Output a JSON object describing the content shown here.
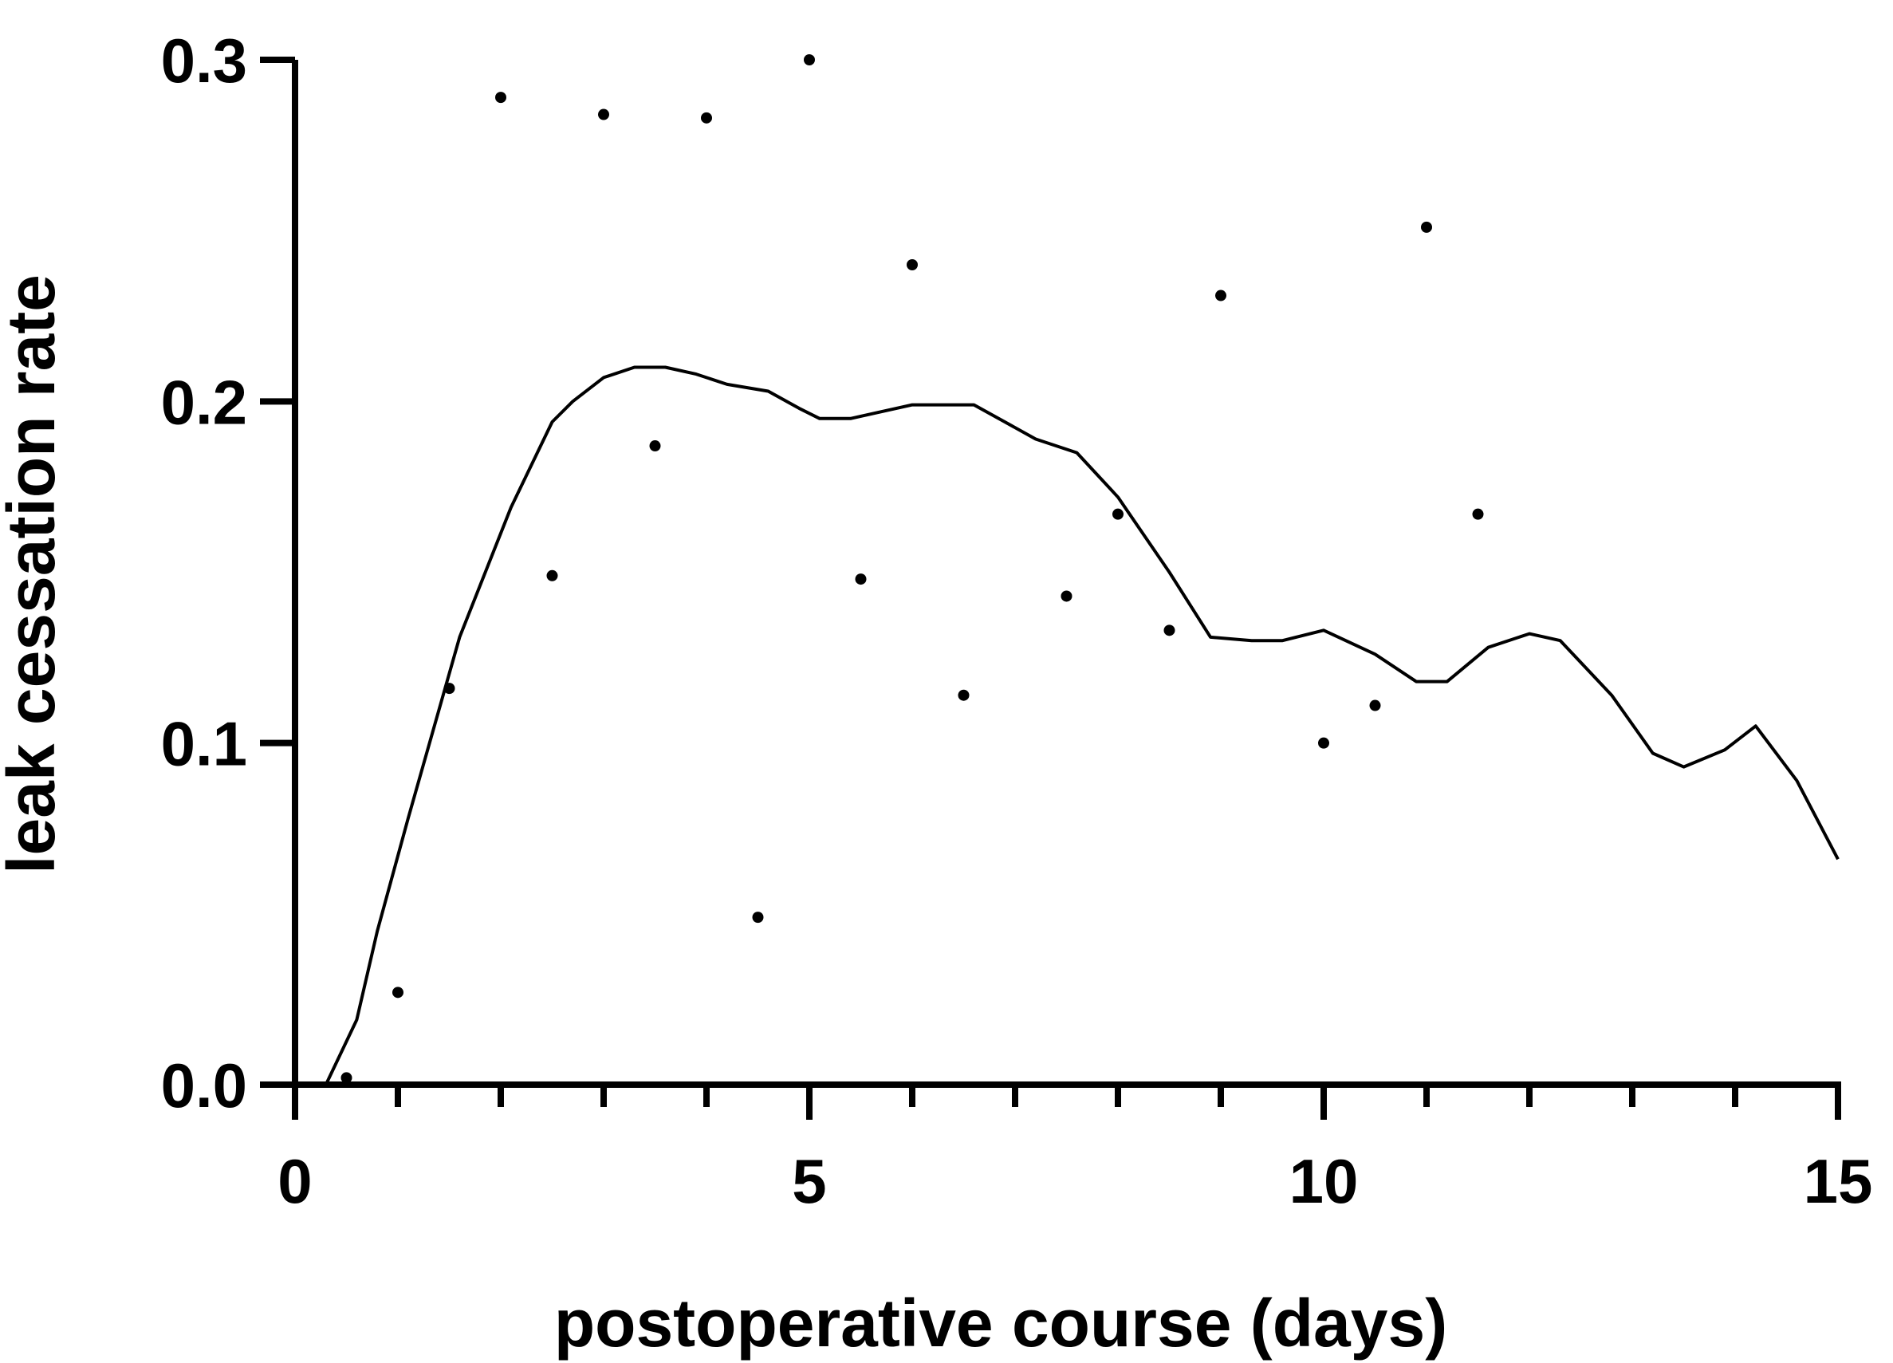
{
  "chart_data": {
    "type": "scatter",
    "title": "",
    "xlabel": "postoperative course (days)",
    "ylabel": "leak cessation rate",
    "xlim": [
      0,
      15
    ],
    "ylim": [
      0,
      0.3
    ],
    "x_ticks_major": [
      0,
      5,
      10,
      15
    ],
    "x_tick_labels": [
      "0",
      "5",
      "10",
      "15"
    ],
    "x_ticks_minor": [
      1,
      2,
      3,
      4,
      6,
      7,
      8,
      9,
      11,
      12,
      13,
      14
    ],
    "y_ticks": [
      0,
      0.1,
      0.2,
      0.3
    ],
    "y_tick_labels": [
      "0.0",
      "0.1",
      "0.2",
      "0.3"
    ],
    "grid": false,
    "series": [
      {
        "kind": "points",
        "color": "#000000",
        "points": [
          [
            0.5,
            0.002
          ],
          [
            1.0,
            0.027
          ],
          [
            1.5,
            0.116
          ],
          [
            2.0,
            0.289
          ],
          [
            2.5,
            0.149
          ],
          [
            3.0,
            0.284
          ],
          [
            3.5,
            0.187
          ],
          [
            4.0,
            0.283
          ],
          [
            4.5,
            0.049
          ],
          [
            5.0,
            0.3
          ],
          [
            5.5,
            0.148
          ],
          [
            6.0,
            0.24
          ],
          [
            6.5,
            0.114
          ],
          [
            7.5,
            0.143
          ],
          [
            8.0,
            0.167
          ],
          [
            8.5,
            0.133
          ],
          [
            9.0,
            0.231
          ],
          [
            10.0,
            0.1
          ],
          [
            10.5,
            0.111
          ],
          [
            11.0,
            0.251
          ],
          [
            11.5,
            0.167
          ]
        ]
      },
      {
        "kind": "smoothed-line",
        "color": "#000000",
        "points": [
          [
            0.3,
            0.0
          ],
          [
            0.6,
            0.019
          ],
          [
            0.8,
            0.045
          ],
          [
            1.1,
            0.078
          ],
          [
            1.6,
            0.131
          ],
          [
            2.1,
            0.169
          ],
          [
            2.5,
            0.194
          ],
          [
            2.7,
            0.2
          ],
          [
            3.0,
            0.207
          ],
          [
            3.3,
            0.21
          ],
          [
            3.6,
            0.21
          ],
          [
            3.9,
            0.208
          ],
          [
            4.2,
            0.205
          ],
          [
            4.6,
            0.203
          ],
          [
            4.9,
            0.198
          ],
          [
            5.1,
            0.195
          ],
          [
            5.4,
            0.195
          ],
          [
            5.7,
            0.197
          ],
          [
            6.0,
            0.199
          ],
          [
            6.3,
            0.199
          ],
          [
            6.6,
            0.199
          ],
          [
            6.9,
            0.194
          ],
          [
            7.2,
            0.189
          ],
          [
            7.6,
            0.185
          ],
          [
            8.0,
            0.172
          ],
          [
            8.5,
            0.15
          ],
          [
            8.9,
            0.131
          ],
          [
            9.3,
            0.13
          ],
          [
            9.6,
            0.13
          ],
          [
            10.0,
            0.133
          ],
          [
            10.5,
            0.126
          ],
          [
            10.9,
            0.118
          ],
          [
            11.2,
            0.118
          ],
          [
            11.6,
            0.128
          ],
          [
            12.0,
            0.132
          ],
          [
            12.3,
            0.13
          ],
          [
            12.8,
            0.114
          ],
          [
            13.2,
            0.097
          ],
          [
            13.5,
            0.093
          ],
          [
            13.9,
            0.098
          ],
          [
            14.2,
            0.105
          ],
          [
            14.6,
            0.089
          ],
          [
            15.0,
            0.066
          ]
        ]
      }
    ]
  }
}
